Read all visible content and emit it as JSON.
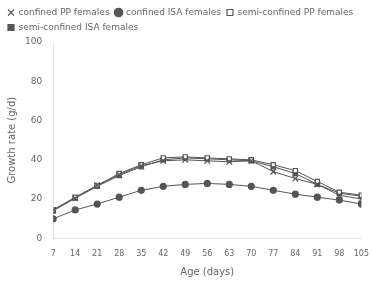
{
  "chart_data": {
    "type": "line",
    "xlabel": "Age (days)",
    "ylabel": "Growth rate (g/d)",
    "x": [
      7,
      14,
      21,
      28,
      35,
      42,
      49,
      56,
      63,
      70,
      77,
      84,
      91,
      98,
      105
    ],
    "series": [
      {
        "name": "confined PP females",
        "color": "#555555",
        "marker": "x",
        "values": [
          14.5,
          20.5,
          27.0,
          32.5,
          37.0,
          39.5,
          40.0,
          39.5,
          39.0,
          39.5,
          34.0,
          30.5,
          27.5,
          22.0,
          20.0
        ]
      },
      {
        "name": "confined ISA females",
        "color": "#555555",
        "marker": "circle",
        "values": [
          10.0,
          14.5,
          17.5,
          21.0,
          24.5,
          26.5,
          27.5,
          28.0,
          27.5,
          26.5,
          24.5,
          22.5,
          21.0,
          19.5,
          17.5
        ]
      },
      {
        "name": "semi-confined PP females",
        "color": "#555555",
        "marker": "open-square",
        "values": [
          14.5,
          21.0,
          27.0,
          33.0,
          37.5,
          41.0,
          41.5,
          41.0,
          40.5,
          40.0,
          37.5,
          34.5,
          29.0,
          23.5,
          22.0
        ]
      },
      {
        "name": "semi-confined ISA females",
        "color": "#555555",
        "marker": "square",
        "values": [
          14.0,
          20.5,
          26.5,
          32.0,
          36.5,
          40.0,
          41.0,
          40.5,
          40.0,
          39.5,
          36.5,
          33.0,
          27.5,
          23.0,
          21.5
        ]
      }
    ],
    "xlim": [
      7,
      105
    ],
    "xticks": [
      7,
      14,
      21,
      28,
      35,
      42,
      49,
      56,
      63,
      70,
      77,
      84,
      91,
      98,
      105
    ],
    "ylim": [
      0,
      100
    ],
    "yticks": [
      0,
      20,
      40,
      60,
      80,
      100
    ],
    "grid": false,
    "legend": "upper left"
  }
}
